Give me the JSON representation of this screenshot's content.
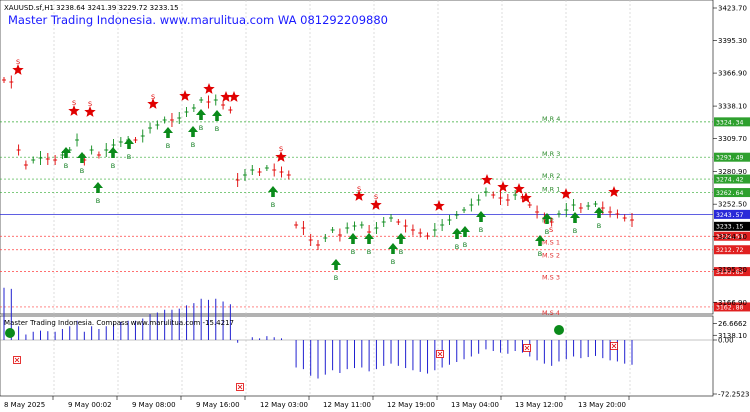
{
  "main": {
    "symbol_line": "XAUUSD.sf,H1  3238.64 3241.39 3229.72 3233.15",
    "header_text": "Master Trading Indonesia. www.marulitua.com WA 081292209880",
    "price_ticks": [
      "3423.70",
      "3395.30",
      "3366.90",
      "3338.10",
      "3309.70",
      "3280.90",
      "3252.50",
      "3224.10",
      "3195.30",
      "3166.90",
      "3138.10"
    ],
    "levels": [
      {
        "label": "M.R 4",
        "price": "3324.34",
        "kind": "r"
      },
      {
        "label": "M.R 3",
        "price": "3293.49",
        "kind": "r"
      },
      {
        "label": "M.R 2",
        "price": "3274.42",
        "kind": "r"
      },
      {
        "label": "M.R 1",
        "price": "3262.64",
        "kind": "r"
      },
      {
        "label": "M.P",
        "price": "3243.57",
        "kind": "p"
      },
      {
        "label": "M.S 1",
        "price": "3224.50",
        "kind": "s"
      },
      {
        "label": "M.S 2",
        "price": "3212.72",
        "kind": "s"
      },
      {
        "label": "M.S 3",
        "price": "3193.65",
        "kind": "s"
      },
      {
        "label": "M.S 4",
        "price": "3162.80",
        "kind": "s"
      }
    ],
    "current_price": "3233.15",
    "buy_letter": "B",
    "sell_letter": "S"
  },
  "indicator": {
    "title": "Master Trading Indonesia. Compass www.marulitua.com -15.4217",
    "ticks": [
      "26.6662",
      "0.00",
      "-72.2523"
    ]
  },
  "time_axis": [
    "8 May 2025",
    "9 May 00:02",
    "9 May 08:00",
    "9 May 16:00",
    "12 May 03:00",
    "12 May 11:00",
    "12 May 19:00",
    "13 May 04:00",
    "13 May 12:00",
    "13 May 20:00"
  ],
  "colors": {
    "bull": "#0a8a1a",
    "bear": "#e00000",
    "grid": "#22a022",
    "pivot": "#2a2ad8",
    "header": "#1a1aff",
    "histogram": "#2020d0"
  }
}
